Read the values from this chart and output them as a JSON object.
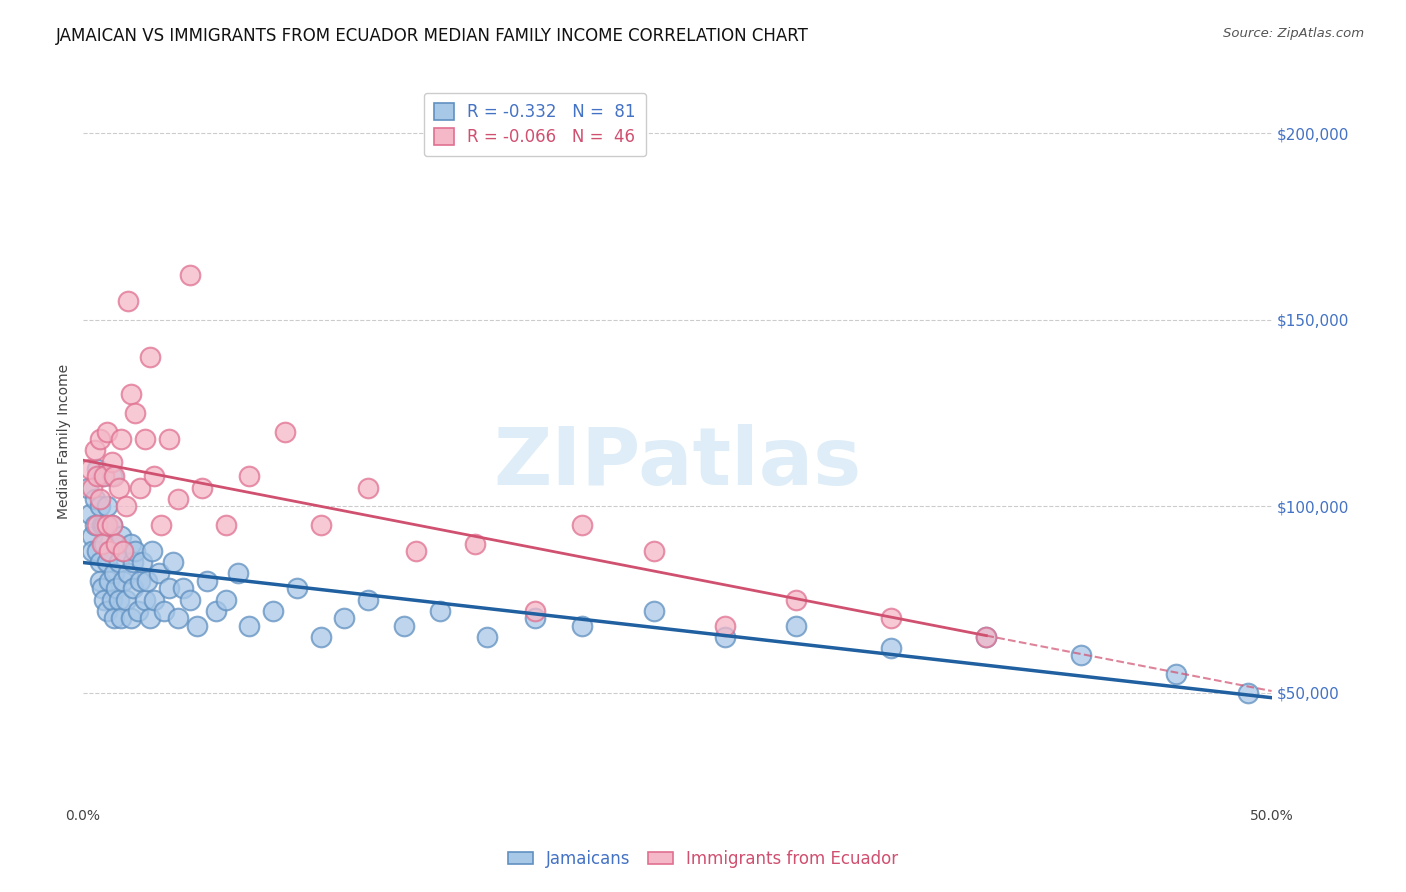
{
  "title": "JAMAICAN VS IMMIGRANTS FROM ECUADOR MEDIAN FAMILY INCOME CORRELATION CHART",
  "source": "Source: ZipAtlas.com",
  "ylabel": "Median Family Income",
  "xlim": [
    0.0,
    0.5
  ],
  "ylim": [
    20000,
    215000
  ],
  "yticks": [
    50000,
    100000,
    150000,
    200000
  ],
  "ytick_labels": [
    "$50,000",
    "$100,000",
    "$150,000",
    "$200,000"
  ],
  "xticks": [
    0.0,
    0.1,
    0.2,
    0.3,
    0.4,
    0.5
  ],
  "xtick_labels": [
    "0.0%",
    "",
    "",
    "",
    "",
    "50.0%"
  ],
  "blue_color": "#a8c8e8",
  "pink_color": "#f4b8c8",
  "blue_edge": "#6090c0",
  "pink_edge": "#e07090",
  "trend_blue_color": "#2060a0",
  "trend_pink_color": "#d05070",
  "background_color": "#ffffff",
  "grid_color": "#cccccc",
  "title_fontsize": 12,
  "axis_label_fontsize": 10,
  "tick_fontsize": 10,
  "watermark": "ZIPatlas",
  "legend_r_blue": "R = -0.332",
  "legend_n_blue": "N =  81",
  "legend_r_pink": "R = -0.066",
  "legend_n_pink": "N =  46",
  "blue_scatter_x": [
    0.002,
    0.003,
    0.004,
    0.004,
    0.005,
    0.005,
    0.006,
    0.006,
    0.007,
    0.007,
    0.007,
    0.008,
    0.008,
    0.008,
    0.009,
    0.009,
    0.009,
    0.01,
    0.01,
    0.01,
    0.011,
    0.011,
    0.012,
    0.012,
    0.012,
    0.013,
    0.013,
    0.014,
    0.014,
    0.015,
    0.015,
    0.016,
    0.016,
    0.017,
    0.017,
    0.018,
    0.019,
    0.02,
    0.02,
    0.021,
    0.021,
    0.022,
    0.023,
    0.024,
    0.025,
    0.026,
    0.027,
    0.028,
    0.029,
    0.03,
    0.032,
    0.034,
    0.036,
    0.038,
    0.04,
    0.042,
    0.045,
    0.048,
    0.052,
    0.056,
    0.06,
    0.065,
    0.07,
    0.08,
    0.09,
    0.1,
    0.11,
    0.12,
    0.135,
    0.15,
    0.17,
    0.19,
    0.21,
    0.24,
    0.27,
    0.3,
    0.34,
    0.38,
    0.42,
    0.46,
    0.49
  ],
  "blue_scatter_y": [
    105000,
    98000,
    92000,
    88000,
    102000,
    95000,
    110000,
    88000,
    100000,
    85000,
    80000,
    95000,
    78000,
    108000,
    90000,
    75000,
    95000,
    85000,
    100000,
    72000,
    88000,
    80000,
    95000,
    75000,
    108000,
    82000,
    70000,
    90000,
    78000,
    85000,
    75000,
    92000,
    70000,
    80000,
    88000,
    75000,
    82000,
    90000,
    70000,
    85000,
    78000,
    88000,
    72000,
    80000,
    85000,
    75000,
    80000,
    70000,
    88000,
    75000,
    82000,
    72000,
    78000,
    85000,
    70000,
    78000,
    75000,
    68000,
    80000,
    72000,
    75000,
    82000,
    68000,
    72000,
    78000,
    65000,
    70000,
    75000,
    68000,
    72000,
    65000,
    70000,
    68000,
    72000,
    65000,
    68000,
    62000,
    65000,
    60000,
    55000,
    50000
  ],
  "pink_scatter_x": [
    0.003,
    0.004,
    0.005,
    0.006,
    0.006,
    0.007,
    0.007,
    0.008,
    0.009,
    0.01,
    0.01,
    0.011,
    0.012,
    0.012,
    0.013,
    0.014,
    0.015,
    0.016,
    0.017,
    0.018,
    0.019,
    0.02,
    0.022,
    0.024,
    0.026,
    0.028,
    0.03,
    0.033,
    0.036,
    0.04,
    0.045,
    0.05,
    0.06,
    0.07,
    0.085,
    0.1,
    0.12,
    0.14,
    0.165,
    0.19,
    0.21,
    0.24,
    0.27,
    0.3,
    0.34,
    0.38
  ],
  "pink_scatter_y": [
    110000,
    105000,
    115000,
    108000,
    95000,
    102000,
    118000,
    90000,
    108000,
    120000,
    95000,
    88000,
    112000,
    95000,
    108000,
    90000,
    105000,
    118000,
    88000,
    100000,
    155000,
    130000,
    125000,
    105000,
    118000,
    140000,
    108000,
    95000,
    118000,
    102000,
    162000,
    105000,
    95000,
    108000,
    120000,
    95000,
    105000,
    88000,
    90000,
    72000,
    95000,
    88000,
    68000,
    75000,
    70000,
    65000
  ]
}
